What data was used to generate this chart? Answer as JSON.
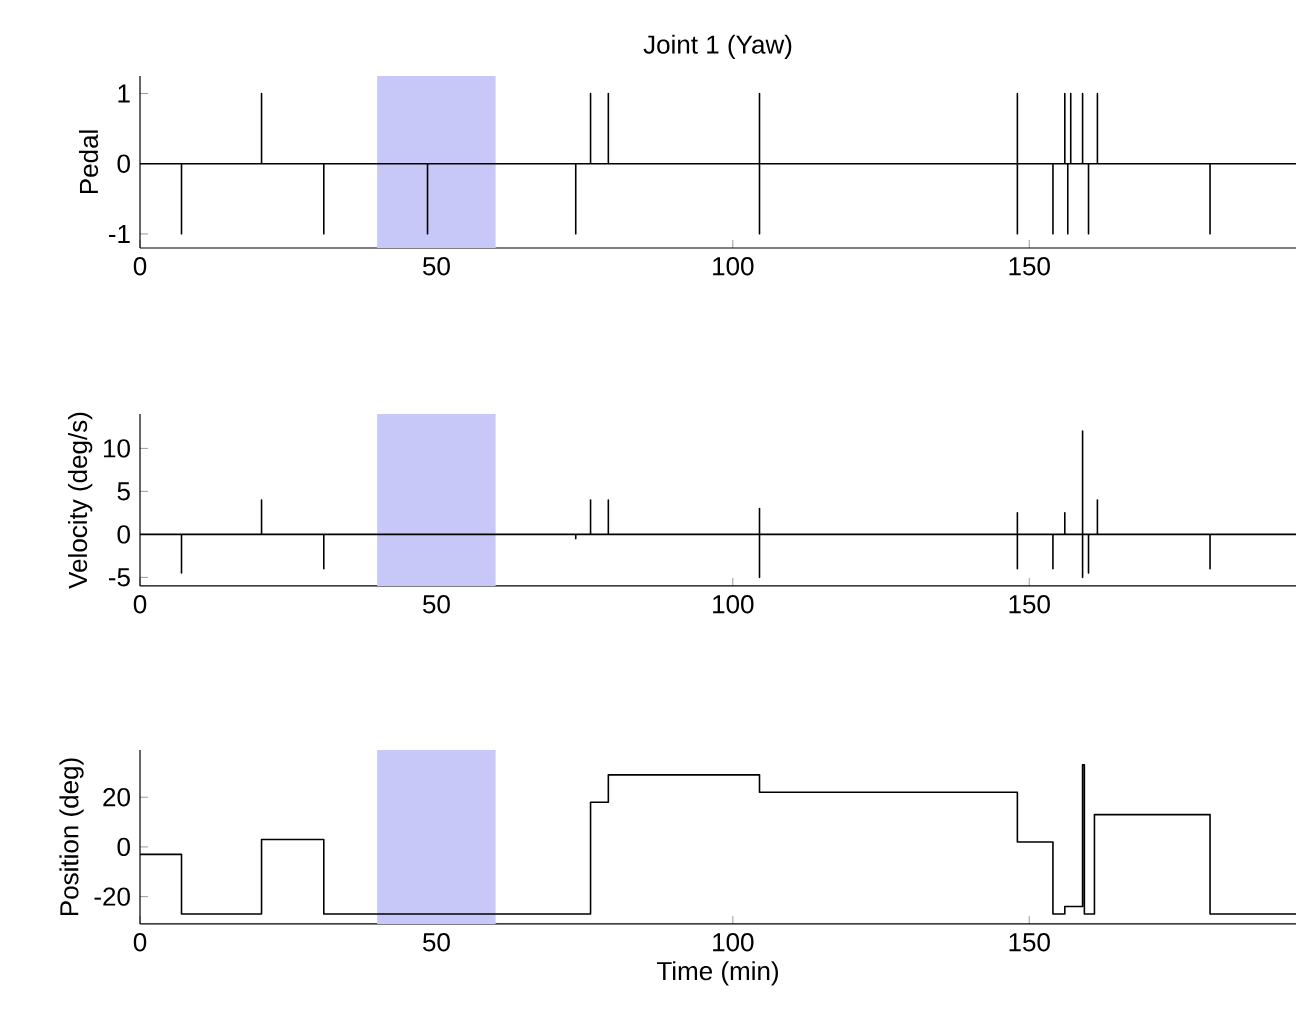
{
  "chart_data": [
    {
      "type": "line",
      "title": "Joint 1 (Yaw)",
      "ylabel": "Pedal",
      "xlim": [
        0,
        195
      ],
      "xticks": [
        0,
        50,
        100,
        150
      ],
      "ylim": [
        -1.2,
        1.25
      ],
      "yticks": [
        -1,
        0,
        1
      ],
      "bands": [
        {
          "axis": "x",
          "from": 40,
          "to": 60,
          "color": "#c8c8f8"
        }
      ],
      "series": [
        {
          "color": "#000000",
          "x": [
            0,
            7,
            7,
            7,
            20.5,
            20.5,
            20.5,
            31,
            31,
            31,
            48.5,
            48.5,
            48.5,
            73.5,
            73.5,
            73.5,
            76,
            76,
            76,
            79,
            79,
            79,
            104.5,
            104.5,
            104.5,
            104.5,
            148,
            148,
            148,
            148,
            154,
            154,
            154,
            156,
            156,
            156,
            156.5,
            156.5,
            156.5,
            157,
            157,
            157,
            159,
            159,
            159,
            160,
            160,
            160,
            161.5,
            161.5,
            161.5,
            180.5,
            180.5,
            180.5,
            195
          ],
          "values": [
            0,
            0,
            -1,
            0,
            0,
            1,
            0,
            0,
            -1,
            0,
            0,
            -1,
            0,
            0,
            -1,
            0,
            0,
            1,
            0,
            0,
            1,
            0,
            0,
            1,
            -1,
            0,
            0,
            1,
            -1,
            0,
            0,
            -1,
            0,
            0,
            1,
            0,
            0,
            -1,
            0,
            0,
            1,
            0,
            0,
            1,
            0,
            0,
            -1,
            0,
            0,
            1,
            0,
            0,
            -1,
            0,
            0
          ]
        }
      ]
    },
    {
      "type": "line",
      "ylabel": "Velocity (deg/s)",
      "xlim": [
        0,
        195
      ],
      "xticks": [
        0,
        50,
        100,
        150
      ],
      "ylim": [
        -6,
        14
      ],
      "yticks": [
        -5,
        0,
        5,
        10
      ],
      "bands": [
        {
          "axis": "x",
          "from": 40,
          "to": 60,
          "color": "#c8c8f8"
        }
      ],
      "series": [
        {
          "color": "#000000",
          "x": [
            0,
            7,
            7,
            7,
            20.5,
            20.5,
            20.5,
            31,
            31,
            31,
            73.5,
            73.5,
            73.5,
            76,
            76,
            76,
            79,
            79,
            79,
            104.5,
            104.5,
            104.5,
            104.5,
            148,
            148,
            148,
            148,
            154,
            154,
            154,
            156,
            156,
            156,
            159,
            159,
            159,
            159,
            160,
            160,
            160,
            161.5,
            161.5,
            161.5,
            180.5,
            180.5,
            180.5,
            195
          ],
          "values": [
            0,
            0,
            -4.5,
            0,
            0,
            4,
            0,
            0,
            -4,
            0,
            0,
            -0.5,
            0,
            0,
            4,
            0,
            0,
            4,
            0,
            0,
            3,
            -5,
            0,
            0,
            2.5,
            -4,
            0,
            0,
            -4,
            0,
            0,
            2.5,
            0,
            0,
            12,
            -5,
            0,
            0,
            -4.5,
            0,
            0,
            4,
            0,
            0,
            -4,
            0,
            0
          ]
        }
      ]
    },
    {
      "type": "step",
      "ylabel": "Position (deg)",
      "xlabel": "Time (min)",
      "xlim": [
        0,
        195
      ],
      "xticks": [
        0,
        50,
        100,
        150
      ],
      "ylim": [
        -31,
        39
      ],
      "yticks": [
        -20,
        0,
        20
      ],
      "bands": [
        {
          "axis": "x",
          "from": 40,
          "to": 60,
          "color": "#c8c8f8"
        }
      ],
      "series": [
        {
          "color": "#000000",
          "x": [
            0,
            7,
            20.5,
            31,
            76,
            79,
            104.5,
            148,
            154,
            156,
            159,
            159.3,
            161,
            180.5,
            195
          ],
          "values": [
            -3,
            -27,
            3,
            -27,
            18,
            29,
            22,
            2,
            -27,
            -24,
            33,
            -27,
            13,
            -27,
            -27
          ]
        }
      ]
    }
  ]
}
